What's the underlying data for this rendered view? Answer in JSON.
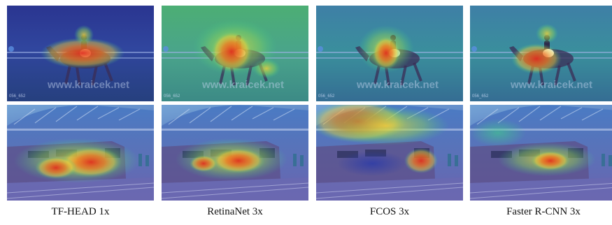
{
  "columns": [
    {
      "caption": "TF-HEAD 1x"
    },
    {
      "caption": "RetinaNet 3x"
    },
    {
      "caption": "FCOS 3x"
    },
    {
      "caption": "Faster R-CNN 3x"
    }
  ],
  "rows": [
    {
      "scene": "horse-rider-dressage",
      "watermark": "www.kraicek.net",
      "image_id": "056_652"
    },
    {
      "scene": "train-at-station"
    }
  ],
  "colors": {
    "heat_hot": "#e0301e",
    "heat_warm": "#f0d23a",
    "heat_mid": "#3fcf8a",
    "heat_cold": "#2a3aa8"
  }
}
